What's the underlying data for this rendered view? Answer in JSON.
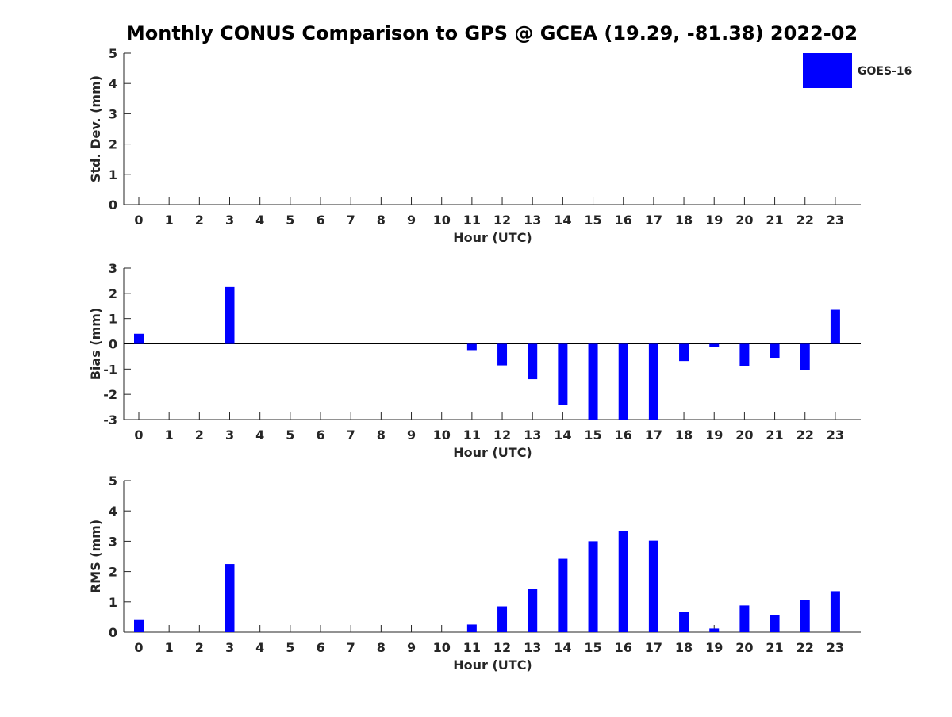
{
  "title": "Monthly CONUS Comparison to GPS @ GCEA (19.29, -81.38) 2022-02",
  "legend": {
    "label": "GOES-16",
    "color": "#0000ff"
  },
  "chart_data": [
    {
      "type": "bar",
      "name": "std-dev",
      "ylabel": "Std. Dev. (mm)",
      "xlabel": "Hour (UTC)",
      "ylim": [
        0,
        5
      ],
      "yticks": [
        "0",
        "1",
        "2",
        "3",
        "4",
        "5"
      ],
      "categories": [
        "0",
        "1",
        "2",
        "3",
        "4",
        "5",
        "6",
        "7",
        "8",
        "9",
        "10",
        "11",
        "12",
        "13",
        "14",
        "15",
        "16",
        "17",
        "18",
        "19",
        "20",
        "21",
        "22",
        "23"
      ],
      "series": [
        {
          "name": "GOES-16",
          "values": [
            null,
            null,
            null,
            null,
            null,
            null,
            null,
            null,
            null,
            null,
            null,
            null,
            null,
            null,
            null,
            null,
            null,
            null,
            null,
            null,
            null,
            null,
            null,
            null
          ]
        }
      ]
    },
    {
      "type": "bar",
      "name": "bias",
      "ylabel": "Bias (mm)",
      "xlabel": "Hour (UTC)",
      "ylim": [
        -3,
        3
      ],
      "yticks": [
        "-3",
        "-2",
        "-1",
        "0",
        "1",
        "2",
        "3"
      ],
      "categories": [
        "0",
        "1",
        "2",
        "3",
        "4",
        "5",
        "6",
        "7",
        "8",
        "9",
        "10",
        "11",
        "12",
        "13",
        "14",
        "15",
        "16",
        "17",
        "18",
        "19",
        "20",
        "21",
        "22",
        "23"
      ],
      "series": [
        {
          "name": "GOES-16",
          "values": [
            0.4,
            null,
            null,
            2.25,
            null,
            null,
            null,
            null,
            null,
            null,
            null,
            -0.25,
            -0.85,
            -1.4,
            -2.42,
            -3.0,
            -3.35,
            -3.0,
            -0.68,
            -0.12,
            -0.87,
            -0.55,
            -1.05,
            1.35
          ]
        }
      ]
    },
    {
      "type": "bar",
      "name": "rms",
      "ylabel": "RMS (mm)",
      "xlabel": "Hour (UTC)",
      "ylim": [
        0,
        5
      ],
      "yticks": [
        "0",
        "1",
        "2",
        "3",
        "4",
        "5"
      ],
      "categories": [
        "0",
        "1",
        "2",
        "3",
        "4",
        "5",
        "6",
        "7",
        "8",
        "9",
        "10",
        "11",
        "12",
        "13",
        "14",
        "15",
        "16",
        "17",
        "18",
        "19",
        "20",
        "21",
        "22",
        "23"
      ],
      "series": [
        {
          "name": "GOES-16",
          "values": [
            0.4,
            null,
            null,
            2.25,
            null,
            null,
            null,
            null,
            null,
            null,
            null,
            0.25,
            0.85,
            1.42,
            2.42,
            3.0,
            3.33,
            3.02,
            0.68,
            0.12,
            0.88,
            0.55,
            1.05,
            1.35
          ]
        }
      ]
    }
  ]
}
